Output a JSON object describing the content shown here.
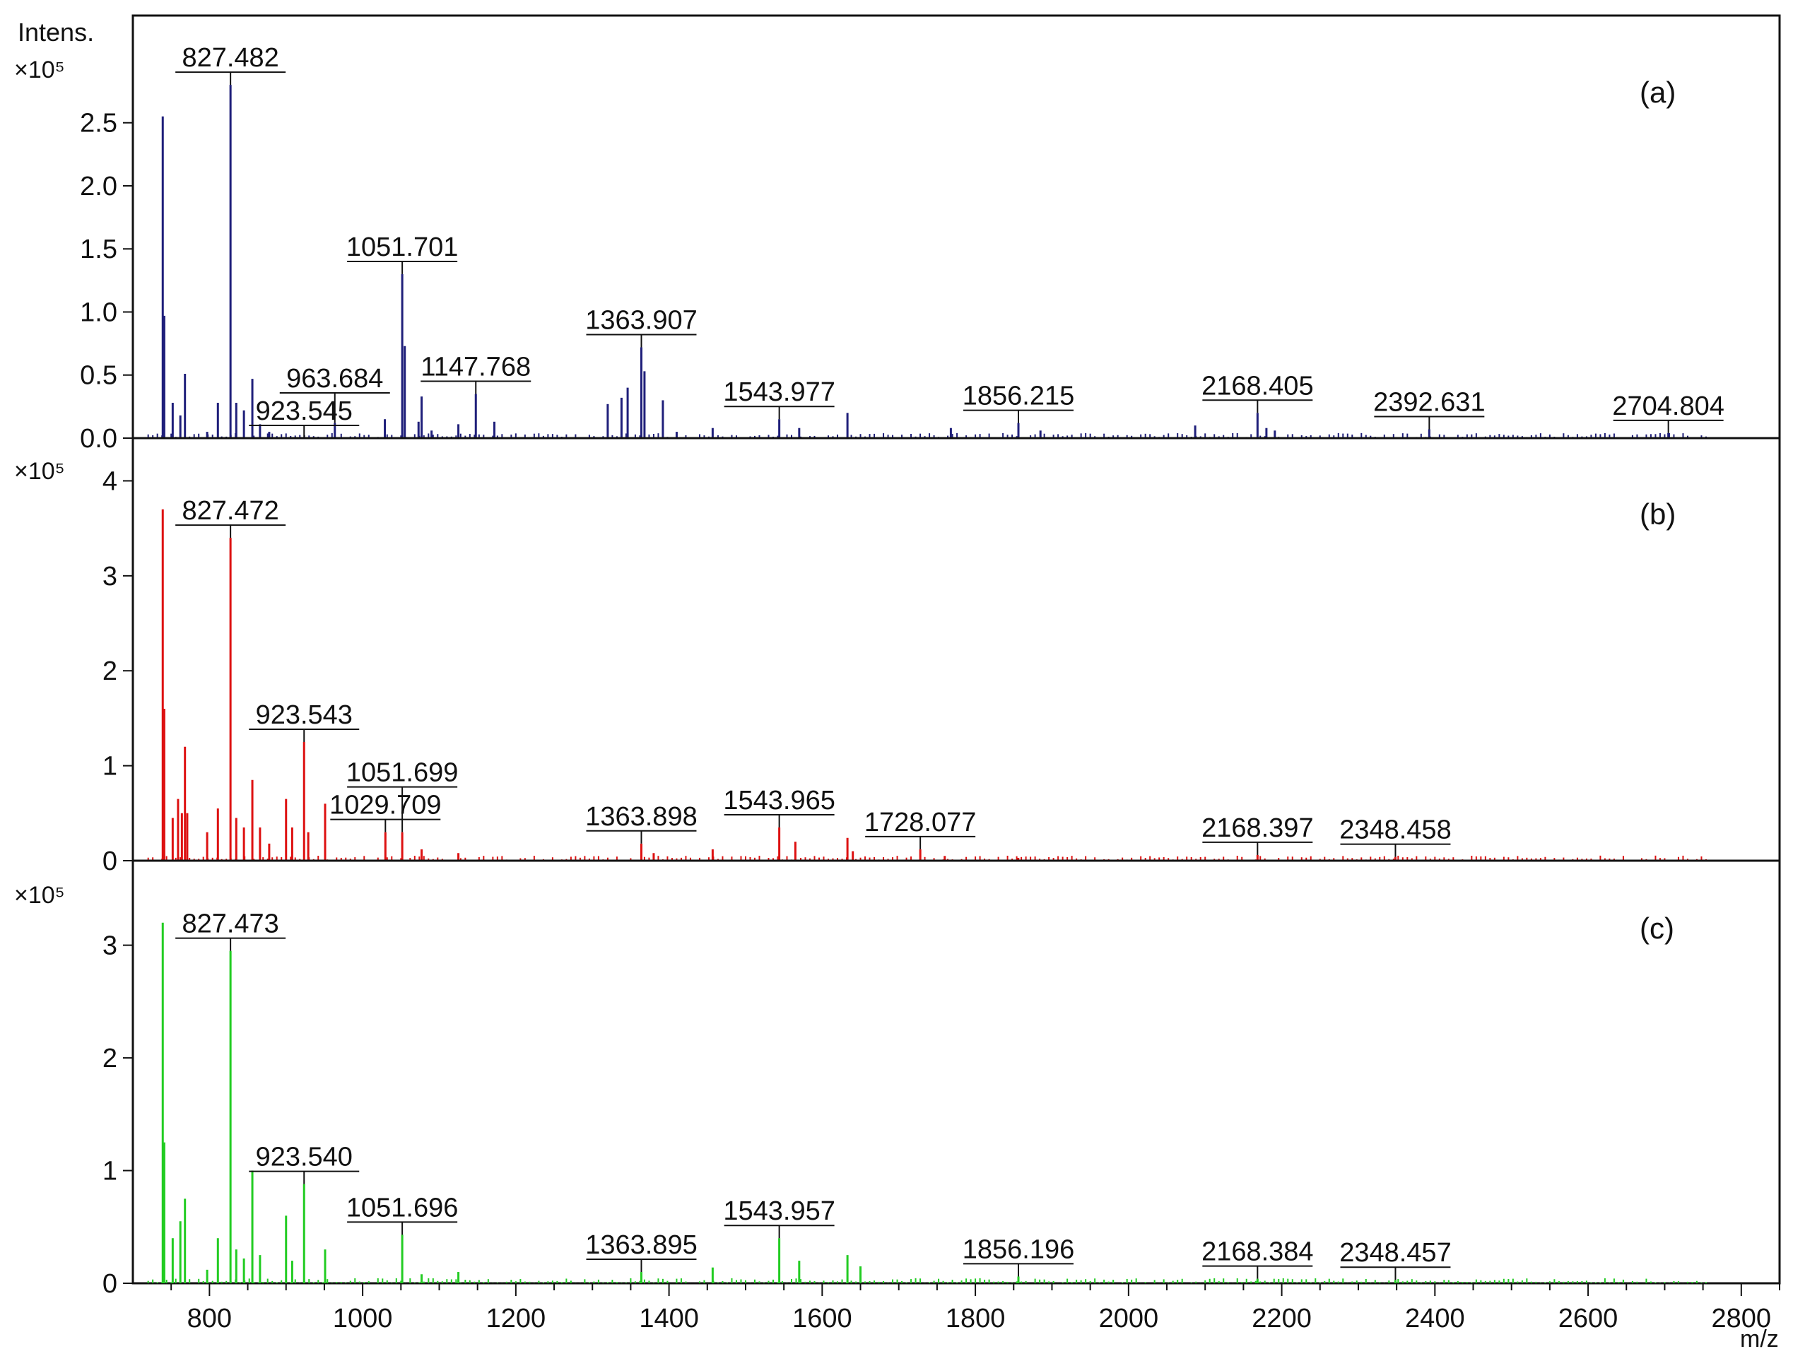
{
  "chart_data": {
    "type": "mass_spectrum",
    "x_axis": {
      "label": "m/z",
      "range": [
        700,
        2850
      ],
      "ticks": [
        800,
        1000,
        1200,
        1400,
        1600,
        1800,
        2000,
        2200,
        2400,
        2600,
        2800
      ],
      "tick_labels": [
        "800",
        "1000",
        "1200",
        "1400",
        "1600",
        "1800",
        "2000",
        "2200",
        "2400",
        "2600",
        "2800"
      ]
    },
    "panels": [
      {
        "id": "a",
        "label": "(a)",
        "color": "#1f1f7a",
        "y_axis_title": "Intens.",
        "y_unit": "×10⁵",
        "ylim": [
          0,
          3.35
        ],
        "y_ticks": [
          0,
          0.5,
          1.0,
          1.5,
          2.0,
          2.5
        ],
        "y_tick_labels": [
          "0.0",
          "0.5",
          "1.0",
          "1.5",
          "2.0",
          "2.5"
        ],
        "peaks": [
          [
            739,
            2.55
          ],
          [
            741,
            0.97
          ],
          [
            752,
            0.28
          ],
          [
            762,
            0.18
          ],
          [
            768,
            0.51
          ],
          [
            797,
            0.05
          ],
          [
            811,
            0.28
          ],
          [
            827.482,
            2.8
          ],
          [
            835,
            0.28
          ],
          [
            845,
            0.22
          ],
          [
            856,
            0.47
          ],
          [
            866,
            0.11
          ],
          [
            878,
            0.05
          ],
          [
            963.684,
            0.12
          ],
          [
            1029,
            0.15
          ],
          [
            1051.701,
            1.3
          ],
          [
            1055,
            0.73
          ],
          [
            1073,
            0.13
          ],
          [
            1077,
            0.33
          ],
          [
            1090,
            0.06
          ],
          [
            1125,
            0.11
          ],
          [
            1147.768,
            0.35
          ],
          [
            1172,
            0.13
          ],
          [
            1320,
            0.27
          ],
          [
            1338,
            0.32
          ],
          [
            1346,
            0.4
          ],
          [
            1363.907,
            0.72
          ],
          [
            1368,
            0.53
          ],
          [
            1392,
            0.3
          ],
          [
            1410,
            0.05
          ],
          [
            1457,
            0.08
          ],
          [
            1543.977,
            0.15
          ],
          [
            1570,
            0.08
          ],
          [
            1633,
            0.2
          ],
          [
            1768,
            0.08
          ],
          [
            1856.215,
            0.12
          ],
          [
            1885,
            0.06
          ],
          [
            2087,
            0.1
          ],
          [
            2168.405,
            0.2
          ],
          [
            2180,
            0.08
          ],
          [
            2191,
            0.06
          ],
          [
            2392.631,
            0.07
          ],
          [
            2704.804,
            0.04
          ]
        ],
        "annotations": [
          {
            "mz": 827.482,
            "text": "827.482"
          },
          {
            "mz": 923.545,
            "text": "923.545"
          },
          {
            "mz": 963.684,
            "text": "963.684"
          },
          {
            "mz": 1051.701,
            "text": "1051.701"
          },
          {
            "mz": 1147.768,
            "text": "1147.768"
          },
          {
            "mz": 1363.907,
            "text": "1363.907"
          },
          {
            "mz": 1543.977,
            "text": "1543.977"
          },
          {
            "mz": 1856.215,
            "text": "1856.215"
          },
          {
            "mz": 2168.405,
            "text": "2168.405"
          },
          {
            "mz": 2392.631,
            "text": "2392.631"
          },
          {
            "mz": 2704.804,
            "text": "2704.804"
          }
        ]
      },
      {
        "id": "b",
        "label": "(b)",
        "color": "#dd1111",
        "y_axis_title": "",
        "y_unit": "×10⁵",
        "ylim": [
          0,
          4.45
        ],
        "y_ticks": [
          0,
          1,
          2,
          3,
          4
        ],
        "y_tick_labels": [
          "0",
          "1",
          "2",
          "3",
          "4"
        ],
        "peaks": [
          [
            739,
            3.7
          ],
          [
            741,
            1.6
          ],
          [
            752,
            0.45
          ],
          [
            759,
            0.65
          ],
          [
            764,
            0.5
          ],
          [
            768,
            1.2
          ],
          [
            771,
            0.5
          ],
          [
            797,
            0.3
          ],
          [
            811,
            0.55
          ],
          [
            827.472,
            3.4
          ],
          [
            835,
            0.45
          ],
          [
            845,
            0.35
          ],
          [
            856,
            0.85
          ],
          [
            866,
            0.35
          ],
          [
            878,
            0.18
          ],
          [
            900,
            0.65
          ],
          [
            908,
            0.35
          ],
          [
            923.543,
            1.25
          ],
          [
            929,
            0.3
          ],
          [
            951,
            0.6
          ],
          [
            1029.709,
            0.3
          ],
          [
            1051.699,
            0.3
          ],
          [
            1077,
            0.12
          ],
          [
            1125,
            0.08
          ],
          [
            1363.898,
            0.18
          ],
          [
            1380,
            0.08
          ],
          [
            1457,
            0.12
          ],
          [
            1543.965,
            0.35
          ],
          [
            1565,
            0.2
          ],
          [
            1633,
            0.24
          ],
          [
            1640,
            0.1
          ],
          [
            1728.077,
            0.12
          ],
          [
            1760,
            0.05
          ],
          [
            1856,
            0.03
          ],
          [
            2168.397,
            0.06
          ],
          [
            2348.458,
            0.04
          ]
        ],
        "annotations": [
          {
            "mz": 827.472,
            "text": "827.472"
          },
          {
            "mz": 923.543,
            "text": "923.543"
          },
          {
            "mz": 1029.709,
            "text": "1029.709"
          },
          {
            "mz": 1051.699,
            "text": "1051.699"
          },
          {
            "mz": 1363.898,
            "text": "1363.898"
          },
          {
            "mz": 1543.965,
            "text": "1543.965"
          },
          {
            "mz": 1728.077,
            "text": "1728.077"
          },
          {
            "mz": 2168.397,
            "text": "2168.397"
          },
          {
            "mz": 2348.458,
            "text": "2348.458"
          }
        ]
      },
      {
        "id": "c",
        "label": "(c)",
        "color": "#22cc22",
        "y_axis_title": "",
        "y_unit": "×10⁵",
        "ylim": [
          0,
          3.75
        ],
        "y_ticks": [
          0,
          1,
          2,
          3
        ],
        "y_tick_labels": [
          "0",
          "1",
          "2",
          "3"
        ],
        "peaks": [
          [
            739,
            3.2
          ],
          [
            741,
            1.25
          ],
          [
            752,
            0.4
          ],
          [
            762,
            0.55
          ],
          [
            768,
            0.75
          ],
          [
            797,
            0.12
          ],
          [
            811,
            0.4
          ],
          [
            827.473,
            2.95
          ],
          [
            835,
            0.3
          ],
          [
            845,
            0.22
          ],
          [
            856,
            1.0
          ],
          [
            866,
            0.25
          ],
          [
            900,
            0.6
          ],
          [
            908,
            0.2
          ],
          [
            923.54,
            0.88
          ],
          [
            951,
            0.3
          ],
          [
            1051.696,
            0.43
          ],
          [
            1077,
            0.08
          ],
          [
            1125,
            0.1
          ],
          [
            1363.895,
            0.1
          ],
          [
            1457,
            0.14
          ],
          [
            1543.957,
            0.4
          ],
          [
            1570,
            0.2
          ],
          [
            1633,
            0.25
          ],
          [
            1650,
            0.15
          ],
          [
            1856.196,
            0.06
          ],
          [
            2168.384,
            0.04
          ],
          [
            2348.457,
            0.03
          ]
        ],
        "annotations": [
          {
            "mz": 827.473,
            "text": "827.473"
          },
          {
            "mz": 923.54,
            "text": "923.540"
          },
          {
            "mz": 1051.696,
            "text": "1051.696"
          },
          {
            "mz": 1363.895,
            "text": "1363.895"
          },
          {
            "mz": 1543.957,
            "text": "1543.957"
          },
          {
            "mz": 1856.196,
            "text": "1856.196"
          },
          {
            "mz": 2168.384,
            "text": "2168.384"
          },
          {
            "mz": 2348.457,
            "text": "2348.457"
          }
        ]
      }
    ]
  }
}
